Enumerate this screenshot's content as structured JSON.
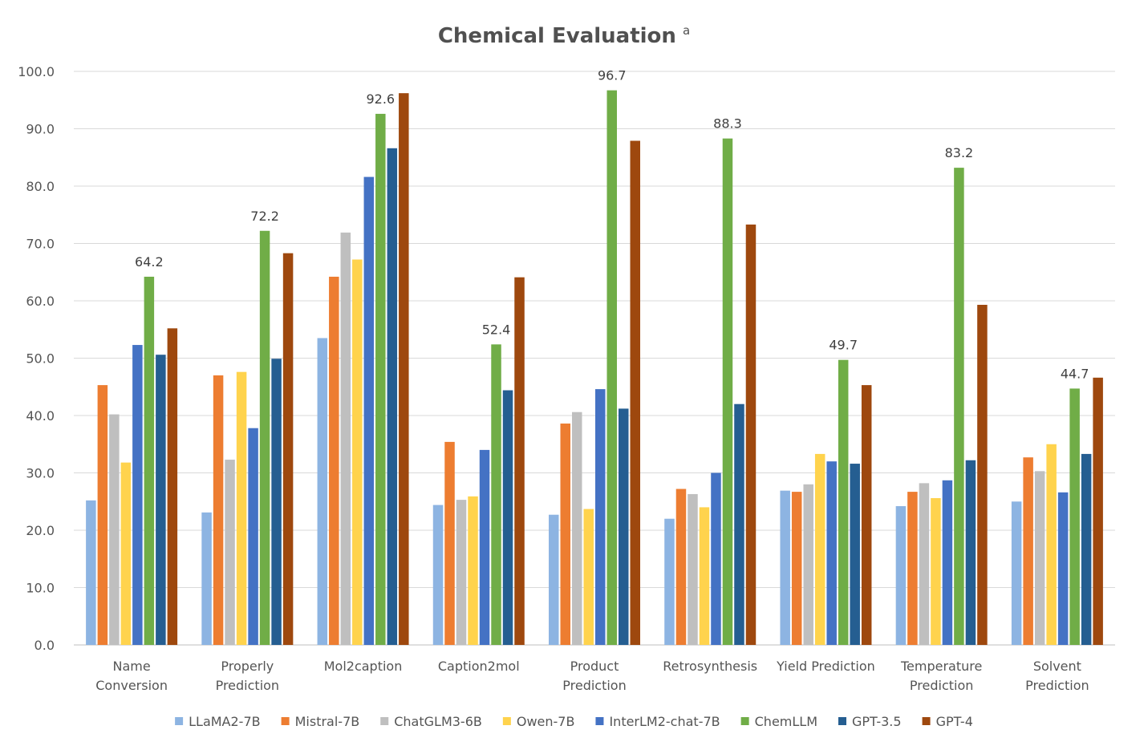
{
  "chart_data": {
    "type": "bar",
    "title": "Chemical Evaluation",
    "title_superscript": "a",
    "xlabel": "",
    "ylabel": "",
    "ylim": [
      0,
      100
    ],
    "yticks": [
      "0.0",
      "10.0",
      "20.0",
      "30.0",
      "40.0",
      "50.0",
      "60.0",
      "70.0",
      "80.0",
      "90.0",
      "100.0"
    ],
    "grid": true,
    "legend_position": "bottom",
    "categories": [
      [
        "Name",
        "Conversion"
      ],
      [
        "Properly",
        "Prediction"
      ],
      [
        "Mol2caption"
      ],
      [
        "Caption2mol"
      ],
      [
        "Product",
        "Prediction"
      ],
      [
        "Retrosynthesis"
      ],
      [
        "Yield Prediction"
      ],
      [
        "Temperature",
        "Prediction"
      ],
      [
        "Solvent",
        "Prediction"
      ]
    ],
    "series": [
      {
        "name": "LLaMA2-7B",
        "color": "#8db4e2",
        "values": [
          25.2,
          23.1,
          53.5,
          24.4,
          22.7,
          22.0,
          26.9,
          24.2,
          25.0
        ]
      },
      {
        "name": "Mistral-7B",
        "color": "#ed7d31",
        "values": [
          45.3,
          47.0,
          64.2,
          35.4,
          38.6,
          27.2,
          26.7,
          26.7,
          32.7
        ]
      },
      {
        "name": "ChatGLM3-6B",
        "color": "#bfbfbf",
        "values": [
          40.2,
          32.3,
          71.9,
          25.3,
          40.6,
          26.3,
          28.0,
          28.2,
          30.3
        ]
      },
      {
        "name": "Owen-7B",
        "color": "#ffd34d",
        "values": [
          31.8,
          47.6,
          67.2,
          25.9,
          23.7,
          24.0,
          33.3,
          25.6,
          35.0
        ]
      },
      {
        "name": "InterLM2-chat-7B",
        "color": "#4472c4",
        "values": [
          52.3,
          37.8,
          81.6,
          34.0,
          44.6,
          30.0,
          32.0,
          28.7,
          26.6
        ]
      },
      {
        "name": "ChemLLM",
        "color": "#70ad47",
        "values": [
          64.2,
          72.2,
          92.6,
          52.4,
          96.7,
          88.3,
          49.7,
          83.2,
          44.7
        ]
      },
      {
        "name": "GPT-3.5",
        "color": "#255e91",
        "values": [
          50.6,
          49.9,
          86.6,
          44.4,
          41.2,
          42.0,
          31.6,
          32.2,
          33.3
        ]
      },
      {
        "name": "GPT-4",
        "color": "#9e480e",
        "values": [
          55.2,
          68.3,
          96.2,
          64.1,
          87.9,
          73.3,
          45.3,
          59.3,
          46.6
        ]
      }
    ],
    "data_labels": {
      "series": "ChemLLM",
      "texts": [
        "64.2",
        "72.2",
        "92.6",
        "52.4",
        "96.7",
        "88.3",
        "49.7",
        "83.2",
        "44.7"
      ]
    }
  }
}
